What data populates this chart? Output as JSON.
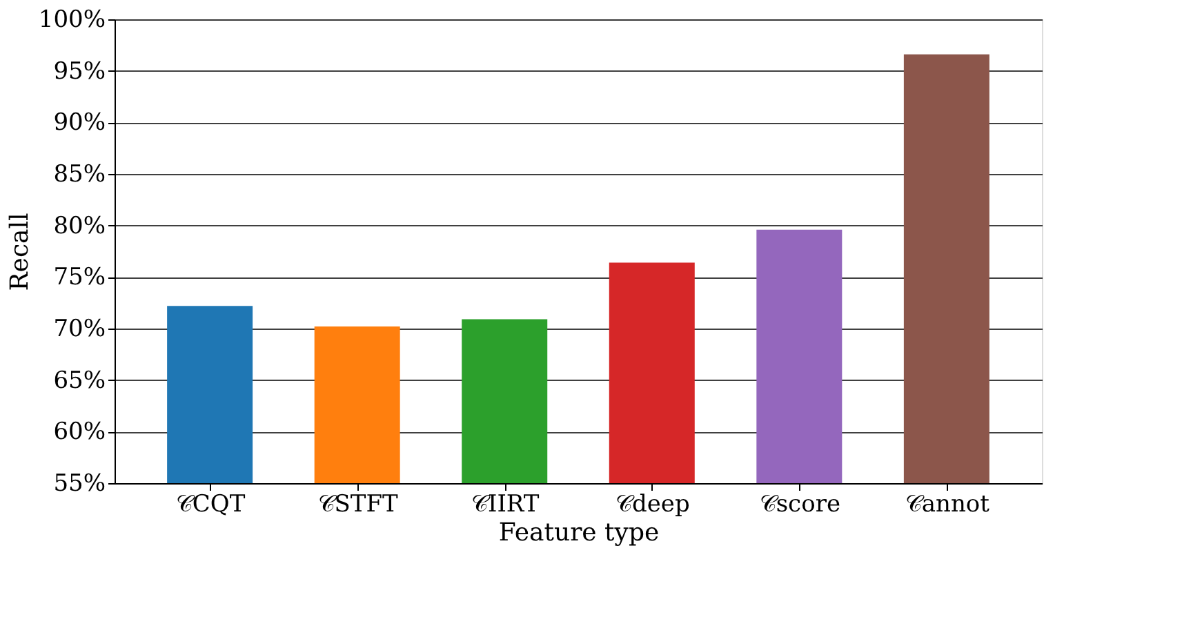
{
  "chart_data": {
    "type": "bar",
    "xlabel": "Feature type",
    "ylabel": "Recall",
    "categories": [
      "𝒞CQT",
      "𝒞STFT",
      "𝒞IIRT",
      "𝒞deep",
      "𝒞score",
      "𝒞annot"
    ],
    "values": [
      72.2,
      70.2,
      70.9,
      76.4,
      79.6,
      96.6
    ],
    "colors": [
      "#1f77b4",
      "#ff7f0e",
      "#2ca02c",
      "#d62728",
      "#9467bd",
      "#8c564b"
    ],
    "ylim": [
      55,
      100
    ],
    "yticks": [
      {
        "value": 55,
        "label": "55%"
      },
      {
        "value": 60,
        "label": "60%"
      },
      {
        "value": 65,
        "label": "65%"
      },
      {
        "value": 70,
        "label": "70%"
      },
      {
        "value": 75,
        "label": "75%"
      },
      {
        "value": 80,
        "label": "80%"
      },
      {
        "value": 85,
        "label": "85%"
      },
      {
        "value": 90,
        "label": "90%"
      },
      {
        "value": 95,
        "label": "95%"
      },
      {
        "value": 100,
        "label": "100%"
      }
    ],
    "grid": "y"
  }
}
